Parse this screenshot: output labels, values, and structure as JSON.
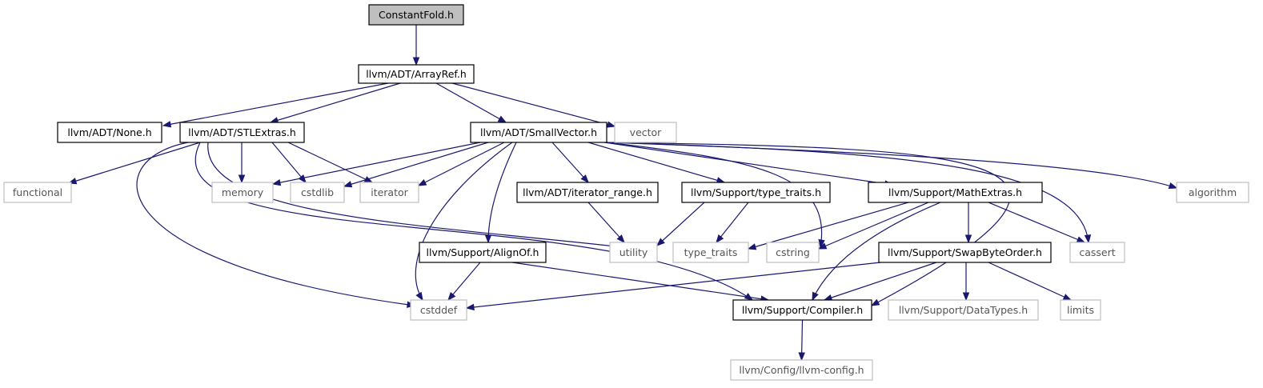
{
  "nodes": {
    "constantfold": {
      "label": "ConstantFold.h",
      "kind": "root"
    },
    "arrayref": {
      "label": "llvm/ADT/ArrayRef.h",
      "kind": "header"
    },
    "none": {
      "label": "llvm/ADT/None.h",
      "kind": "header"
    },
    "stlextras": {
      "label": "llvm/ADT/STLExtras.h",
      "kind": "header"
    },
    "smallvector": {
      "label": "llvm/ADT/SmallVector.h",
      "kind": "header"
    },
    "vector": {
      "label": "vector",
      "kind": "system"
    },
    "functional": {
      "label": "functional",
      "kind": "system"
    },
    "memory": {
      "label": "memory",
      "kind": "system"
    },
    "cstdlib": {
      "label": "cstdlib",
      "kind": "system"
    },
    "iterator": {
      "label": "iterator",
      "kind": "system"
    },
    "iterator_range": {
      "label": "llvm/ADT/iterator_range.h",
      "kind": "header"
    },
    "type_traits_h": {
      "label": "llvm/Support/type_traits.h",
      "kind": "header"
    },
    "mathextras": {
      "label": "llvm/Support/MathExtras.h",
      "kind": "header"
    },
    "algorithm": {
      "label": "algorithm",
      "kind": "system"
    },
    "utility": {
      "label": "utility",
      "kind": "system"
    },
    "type_traits": {
      "label": "type_traits",
      "kind": "system"
    },
    "cstring": {
      "label": "cstring",
      "kind": "system"
    },
    "cassert": {
      "label": "cassert",
      "kind": "system"
    },
    "alignof": {
      "label": "llvm/Support/AlignOf.h",
      "kind": "header"
    },
    "swapbyteorder": {
      "label": "llvm/Support/SwapByteOrder.h",
      "kind": "header"
    },
    "cstddef": {
      "label": "cstddef",
      "kind": "system"
    },
    "compiler": {
      "label": "llvm/Support/Compiler.h",
      "kind": "header"
    },
    "datatypes": {
      "label": "llvm/Support/DataTypes.h",
      "kind": "system"
    },
    "limits": {
      "label": "limits",
      "kind": "system"
    },
    "llvmconfig": {
      "label": "llvm/Config/llvm-config.h",
      "kind": "system"
    }
  },
  "edges": [
    [
      "constantfold",
      "arrayref"
    ],
    [
      "arrayref",
      "none"
    ],
    [
      "arrayref",
      "stlextras"
    ],
    [
      "arrayref",
      "smallvector"
    ],
    [
      "arrayref",
      "vector"
    ],
    [
      "stlextras",
      "functional"
    ],
    [
      "stlextras",
      "memory"
    ],
    [
      "stlextras",
      "cstdlib"
    ],
    [
      "stlextras",
      "iterator"
    ],
    [
      "stlextras",
      "cstddef"
    ],
    [
      "stlextras",
      "utility"
    ],
    [
      "stlextras",
      "compiler"
    ],
    [
      "smallvector",
      "memory"
    ],
    [
      "smallvector",
      "cstdlib"
    ],
    [
      "smallvector",
      "iterator"
    ],
    [
      "smallvector",
      "iterator_range"
    ],
    [
      "smallvector",
      "type_traits_h"
    ],
    [
      "smallvector",
      "mathextras"
    ],
    [
      "smallvector",
      "algorithm"
    ],
    [
      "smallvector",
      "alignof"
    ],
    [
      "smallvector",
      "cstddef"
    ],
    [
      "smallvector",
      "cstring"
    ],
    [
      "smallvector",
      "cassert"
    ],
    [
      "smallvector",
      "compiler"
    ],
    [
      "iterator_range",
      "utility"
    ],
    [
      "type_traits_h",
      "utility"
    ],
    [
      "type_traits_h",
      "type_traits"
    ],
    [
      "mathextras",
      "type_traits"
    ],
    [
      "mathextras",
      "cstring"
    ],
    [
      "mathextras",
      "cassert"
    ],
    [
      "mathextras",
      "swapbyteorder"
    ],
    [
      "mathextras",
      "compiler"
    ],
    [
      "alignof",
      "cstddef"
    ],
    [
      "alignof",
      "compiler"
    ],
    [
      "swapbyteorder",
      "cstddef"
    ],
    [
      "swapbyteorder",
      "compiler"
    ],
    [
      "swapbyteorder",
      "datatypes"
    ],
    [
      "swapbyteorder",
      "limits"
    ],
    [
      "compiler",
      "llvmconfig"
    ]
  ]
}
